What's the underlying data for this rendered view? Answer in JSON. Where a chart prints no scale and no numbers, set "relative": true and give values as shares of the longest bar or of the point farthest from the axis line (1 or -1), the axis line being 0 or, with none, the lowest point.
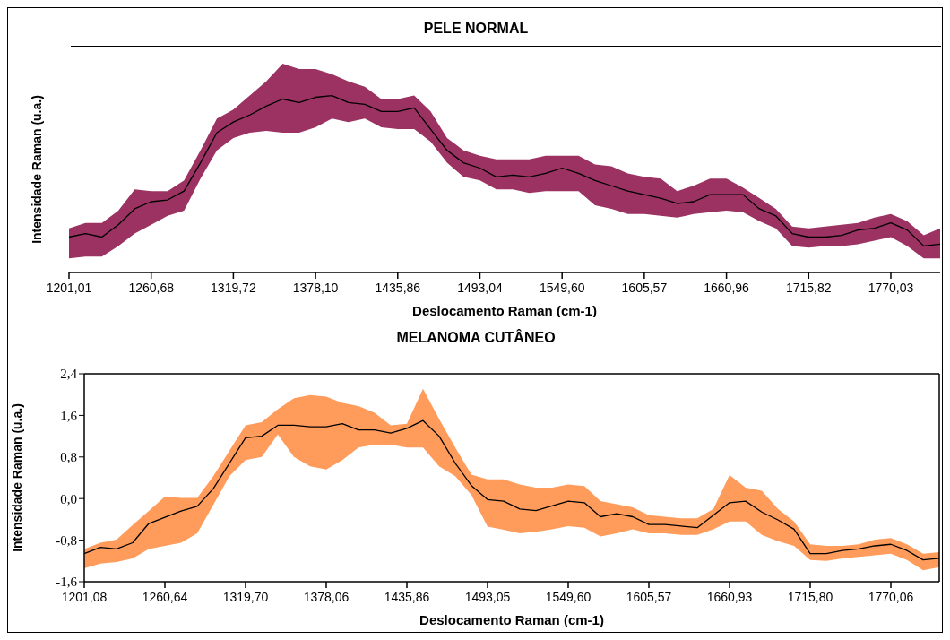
{
  "chart_data": [
    {
      "type": "line",
      "title": "PELE NORMAL",
      "xlabel": "Deslocamento Raman (cm-1)",
      "ylabel": "Intensidade Raman (u.a.)",
      "relative": true,
      "marker": "none",
      "categories": [
        "1201,01",
        null,
        null,
        null,
        null,
        "1260,68",
        null,
        null,
        null,
        null,
        "1319,72",
        null,
        null,
        null,
        null,
        "1378,10",
        null,
        null,
        null,
        null,
        "1435,86",
        null,
        null,
        null,
        null,
        "1493,04",
        null,
        null,
        null,
        null,
        "1549,60",
        null,
        null,
        null,
        null,
        "1605,57",
        null,
        null,
        null,
        null,
        "1660,96",
        null,
        null,
        null,
        null,
        "1715,82",
        null,
        null,
        null,
        null,
        "1770,03",
        null,
        null,
        null
      ],
      "series": [
        {
          "color": "#000000",
          "values": [
            0.2,
            0.22,
            0.2,
            0.27,
            0.36,
            0.4,
            0.41,
            0.46,
            0.62,
            0.79,
            0.85,
            0.89,
            0.94,
            0.98,
            0.96,
            0.99,
            1.0,
            0.96,
            0.95,
            0.91,
            0.91,
            0.93,
            0.81,
            0.69,
            0.62,
            0.59,
            0.54,
            0.55,
            0.54,
            0.56,
            0.59,
            0.56,
            0.52,
            0.49,
            0.46,
            0.44,
            0.42,
            0.39,
            0.4,
            0.44,
            0.44,
            0.44,
            0.36,
            0.32,
            0.22,
            0.2,
            0.2,
            0.21,
            0.24,
            0.25,
            0.28,
            0.24,
            0.15,
            0.16
          ],
          "lower": [
            0.08,
            0.09,
            0.09,
            0.15,
            0.22,
            0.27,
            0.32,
            0.35,
            0.53,
            0.69,
            0.76,
            0.79,
            0.8,
            0.79,
            0.79,
            0.82,
            0.87,
            0.85,
            0.87,
            0.82,
            0.81,
            0.81,
            0.74,
            0.62,
            0.54,
            0.52,
            0.47,
            0.47,
            0.45,
            0.46,
            0.46,
            0.46,
            0.38,
            0.36,
            0.33,
            0.33,
            0.32,
            0.31,
            0.33,
            0.34,
            0.35,
            0.34,
            0.29,
            0.25,
            0.15,
            0.14,
            0.15,
            0.15,
            0.16,
            0.18,
            0.2,
            0.15,
            0.08,
            0.08
          ],
          "upper": [
            0.25,
            0.28,
            0.28,
            0.35,
            0.47,
            0.46,
            0.46,
            0.52,
            0.69,
            0.87,
            0.92,
            1.0,
            1.08,
            1.18,
            1.15,
            1.15,
            1.12,
            1.08,
            1.05,
            0.98,
            0.98,
            1.0,
            0.91,
            0.76,
            0.69,
            0.66,
            0.64,
            0.64,
            0.64,
            0.66,
            0.66,
            0.66,
            0.61,
            0.6,
            0.56,
            0.54,
            0.53,
            0.46,
            0.49,
            0.53,
            0.53,
            0.48,
            0.42,
            0.36,
            0.26,
            0.25,
            0.26,
            0.27,
            0.28,
            0.31,
            0.33,
            0.29,
            0.21,
            0.25
          ]
        }
      ]
    },
    {
      "type": "line",
      "title": "MELANOMA CUTÂNEO",
      "xlabel": "Deslocamento Raman (cm-1)",
      "ylabel": "Intensidade Raman (u.a.)",
      "ylim": [
        -1.6,
        2.4
      ],
      "yticks": [
        {
          "value": -1.6,
          "label": "-1,6"
        },
        {
          "value": -0.8,
          "label": "-0,8"
        },
        {
          "value": 0,
          "label": "0,0"
        },
        {
          "value": 0.8,
          "label": "0,8"
        },
        {
          "value": 1.6,
          "label": "1,6"
        },
        {
          "value": 2.4,
          "label": "2,4"
        }
      ],
      "marker": "none",
      "categories": [
        "1201,08",
        null,
        null,
        null,
        null,
        "1260,64",
        null,
        null,
        null,
        null,
        "1319,70",
        null,
        null,
        null,
        null,
        "1378,06",
        null,
        null,
        null,
        null,
        "1435,86",
        null,
        null,
        null,
        null,
        "1493,05",
        null,
        null,
        null,
        null,
        "1549,60",
        null,
        null,
        null,
        null,
        "1605,57",
        null,
        null,
        null,
        null,
        "1660,93",
        null,
        null,
        null,
        null,
        "1715,80",
        null,
        null,
        null,
        null,
        "1770,06",
        null,
        null,
        null
      ],
      "series": [
        {
          "color": "#000000",
          "values": [
            -1.06,
            -0.94,
            -0.97,
            -0.85,
            -0.48,
            -0.36,
            -0.24,
            -0.15,
            0.19,
            0.68,
            1.17,
            1.2,
            1.41,
            1.41,
            1.38,
            1.38,
            1.44,
            1.32,
            1.32,
            1.26,
            1.35,
            1.5,
            1.2,
            0.68,
            0.25,
            -0.02,
            -0.05,
            -0.2,
            -0.23,
            -0.14,
            -0.05,
            -0.08,
            -0.35,
            -0.29,
            -0.35,
            -0.5,
            -0.5,
            -0.53,
            -0.56,
            -0.32,
            -0.08,
            -0.05,
            -0.26,
            -0.41,
            -0.59,
            -1.06,
            -1.06,
            -1.0,
            -0.97,
            -0.91,
            -0.88,
            -1.0,
            -1.18,
            -1.15
          ],
          "lower": [
            -1.34,
            -1.25,
            -1.22,
            -1.15,
            -0.97,
            -0.91,
            -0.85,
            -0.67,
            -0.12,
            0.43,
            0.74,
            0.8,
            1.23,
            0.8,
            0.62,
            0.56,
            0.74,
            0.98,
            1.04,
            1.04,
            0.98,
            0.98,
            0.62,
            0.43,
            0.07,
            -0.54,
            -0.6,
            -0.67,
            -0.64,
            -0.59,
            -0.53,
            -0.56,
            -0.73,
            -0.67,
            -0.59,
            -0.67,
            -0.67,
            -0.7,
            -0.7,
            -0.59,
            -0.44,
            -0.44,
            -0.7,
            -0.82,
            -0.91,
            -1.18,
            -1.2,
            -1.15,
            -1.12,
            -1.09,
            -1.06,
            -1.18,
            -1.38,
            -1.32
          ],
          "upper": [
            -0.97,
            -0.85,
            -0.79,
            -0.51,
            -0.24,
            0.04,
            0.01,
            0.01,
            0.43,
            0.92,
            1.41,
            1.47,
            1.72,
            1.93,
            1.99,
            1.96,
            1.84,
            1.78,
            1.65,
            1.41,
            1.44,
            2.11,
            1.53,
            0.98,
            0.46,
            0.37,
            0.37,
            0.27,
            0.21,
            0.21,
            0.27,
            0.24,
            -0.05,
            -0.11,
            -0.17,
            -0.32,
            -0.35,
            -0.38,
            -0.38,
            -0.2,
            0.45,
            0.21,
            0.15,
            -0.2,
            -0.44,
            -0.88,
            -0.91,
            -0.91,
            -0.88,
            -0.79,
            -0.76,
            -0.88,
            -1.06,
            -1.03
          ]
        }
      ]
    }
  ]
}
